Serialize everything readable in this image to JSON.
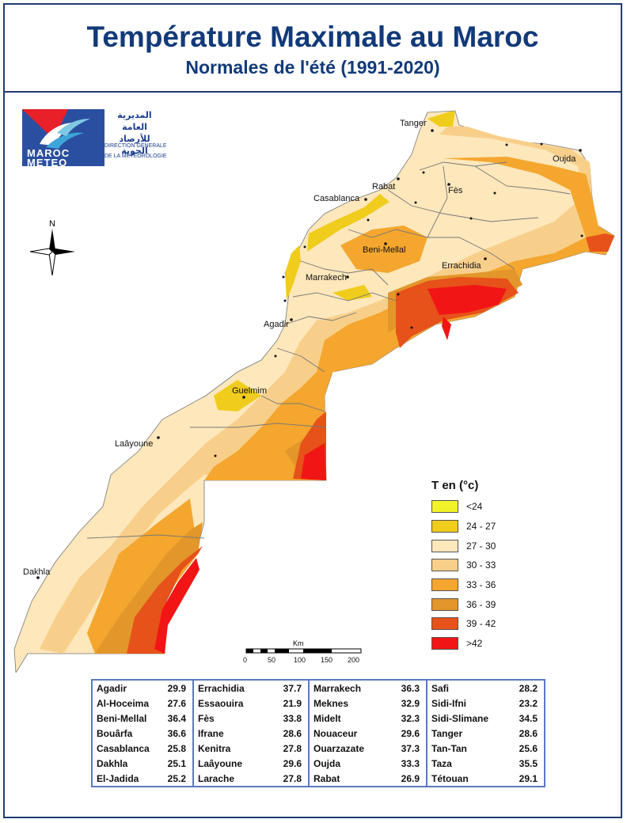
{
  "header": {
    "title": "Température Maximale au Maroc",
    "subtitle": "Normales de l'été  (1991-2020)"
  },
  "logo": {
    "arabic_line1": "المديرية العامة",
    "arabic_line2": "للأرصاد الجوية",
    "french_line1": "DIRECTION GENERALE",
    "french_line2": "DE LA METEOROLOGIE",
    "brand_line1": "MAROC",
    "brand_line2": "METEO"
  },
  "compass": {
    "north_label": "N"
  },
  "cities": [
    "Tanger",
    "Oujda",
    "Rabat",
    "Fès",
    "Casablanca",
    "Beni-Mellal",
    "Errachidia",
    "Marrakech",
    "Agadir",
    "Guelmim",
    "Laâyoune",
    "Dakhla"
  ],
  "legend": {
    "title": "T en (°c)",
    "classes": [
      {
        "label": "<24",
        "color": "#f2f22a"
      },
      {
        "label": "24 - 27",
        "color": "#f0cc1c"
      },
      {
        "label": "27 - 30",
        "color": "#fde7bb"
      },
      {
        "label": "30 - 33",
        "color": "#f8cf8a"
      },
      {
        "label": "33 - 36",
        "color": "#f4a62e"
      },
      {
        "label": "36 - 39",
        "color": "#e3962a"
      },
      {
        "label": "39 - 42",
        "color": "#e6521a"
      },
      {
        "label": ">42",
        "color": "#f21515"
      }
    ]
  },
  "scale": {
    "unit": "Km",
    "ticks": [
      "0",
      "50",
      "100",
      "150",
      "200"
    ]
  },
  "stations": [
    [
      {
        "name": "Agadir",
        "value": "29.9"
      },
      {
        "name": "Errachidia",
        "value": "37.7"
      },
      {
        "name": "Marrakech",
        "value": "36.3"
      },
      {
        "name": "Safi",
        "value": "28.2"
      }
    ],
    [
      {
        "name": "Al-Hoceima",
        "value": "27.6"
      },
      {
        "name": "Essaouira",
        "value": "21.9"
      },
      {
        "name": "Meknes",
        "value": "32.9"
      },
      {
        "name": "Sidi-Ifni",
        "value": "23.2"
      }
    ],
    [
      {
        "name": "Beni-Mellal",
        "value": "36.4"
      },
      {
        "name": "Fès",
        "value": "33.8"
      },
      {
        "name": "Midelt",
        "value": "32.3"
      },
      {
        "name": "Sidi-Slimane",
        "value": "34.5"
      }
    ],
    [
      {
        "name": "Bouârfa",
        "value": "36.6"
      },
      {
        "name": "Ifrane",
        "value": "28.6"
      },
      {
        "name": "Nouaceur",
        "value": "29.6"
      },
      {
        "name": "Tanger",
        "value": "28.6"
      }
    ],
    [
      {
        "name": "Casablanca",
        "value": "25.8"
      },
      {
        "name": "Kenitra",
        "value": "27.8"
      },
      {
        "name": "Ouarzazate",
        "value": "37.3"
      },
      {
        "name": "Tan-Tan",
        "value": "25.6"
      }
    ],
    [
      {
        "name": "Dakhla",
        "value": "25.1"
      },
      {
        "name": "Laâyoune",
        "value": "29.6"
      },
      {
        "name": "Oujda",
        "value": "33.3"
      },
      {
        "name": "Taza",
        "value": "35.5"
      }
    ],
    [
      {
        "name": "El-Jadida",
        "value": "25.2"
      },
      {
        "name": "Larache",
        "value": "27.8"
      },
      {
        "name": "Rabat",
        "value": "26.9"
      },
      {
        "name": "Tétouan",
        "value": "29.1"
      }
    ]
  ]
}
